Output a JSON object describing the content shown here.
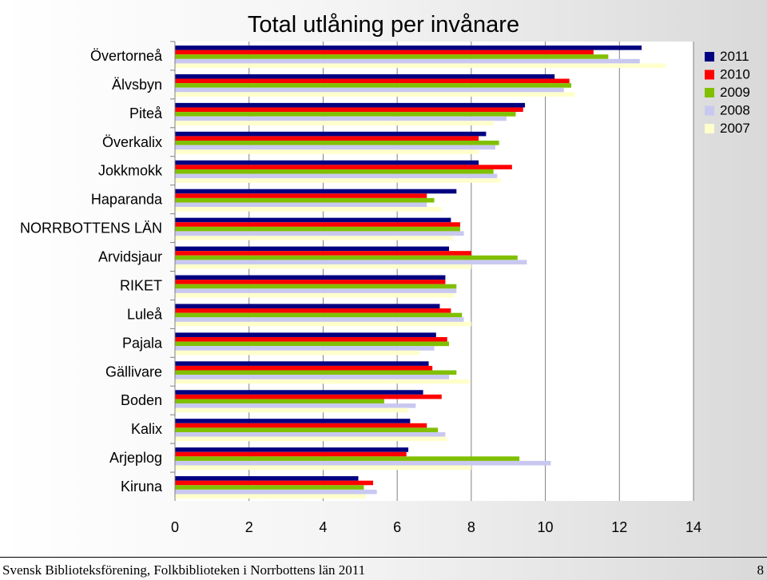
{
  "chart_data": {
    "type": "bar",
    "orientation": "horizontal",
    "title": "Total utlåning per invånare",
    "categories": [
      "Övertorneå",
      "Älvsbyn",
      "Piteå",
      "Överkalix",
      "Jokkmokk",
      "Haparanda",
      "NORRBOTTENS LÄN",
      "Arvidsjaur",
      "RIKET",
      "Luleå",
      "Pajala",
      "Gällivare",
      "Boden",
      "Kalix",
      "Arjeplog",
      "Kiruna"
    ],
    "series": [
      {
        "name": "2011",
        "color": "#000080",
        "values": [
          12.6,
          10.25,
          9.45,
          8.4,
          8.2,
          7.6,
          7.45,
          7.4,
          7.3,
          7.15,
          7.05,
          6.85,
          6.7,
          6.35,
          6.3,
          4.95
        ]
      },
      {
        "name": "2010",
        "color": "#ff0000",
        "values": [
          11.3,
          10.65,
          9.4,
          8.2,
          9.1,
          6.8,
          7.7,
          8.0,
          7.3,
          7.45,
          7.35,
          6.95,
          7.2,
          6.8,
          6.25,
          5.35
        ]
      },
      {
        "name": "2009",
        "color": "#80c000",
        "values": [
          11.7,
          10.7,
          9.2,
          8.75,
          8.6,
          7.0,
          7.7,
          9.25,
          7.6,
          7.75,
          7.4,
          7.6,
          5.65,
          7.1,
          9.3,
          5.1
        ]
      },
      {
        "name": "2008",
        "color": "#c8c8f0",
        "values": [
          12.55,
          10.5,
          8.95,
          8.65,
          8.7,
          6.8,
          7.8,
          9.5,
          7.6,
          7.8,
          7.0,
          7.4,
          6.5,
          7.3,
          10.15,
          5.45
        ]
      },
      {
        "name": "2007",
        "color": "#ffffcc",
        "values": [
          13.25,
          10.8,
          8.6,
          8.2,
          8.8,
          7.2,
          7.5,
          8.0,
          7.55,
          8.0,
          6.6,
          7.95,
          6.3,
          7.35,
          8.0,
          5.15
        ]
      }
    ],
    "xlim": [
      0,
      14
    ],
    "xticks": [
      "0",
      "2",
      "4",
      "6",
      "8",
      "10",
      "12",
      "14"
    ],
    "grid": true,
    "legend_position": "top-right",
    "legend": [
      "2011",
      "2010",
      "2009",
      "2008",
      "2007"
    ]
  },
  "footer": {
    "left": "Svensk Biblioteksförening, Folkbiblioteken i Norrbottens län 2011",
    "page": "8"
  }
}
